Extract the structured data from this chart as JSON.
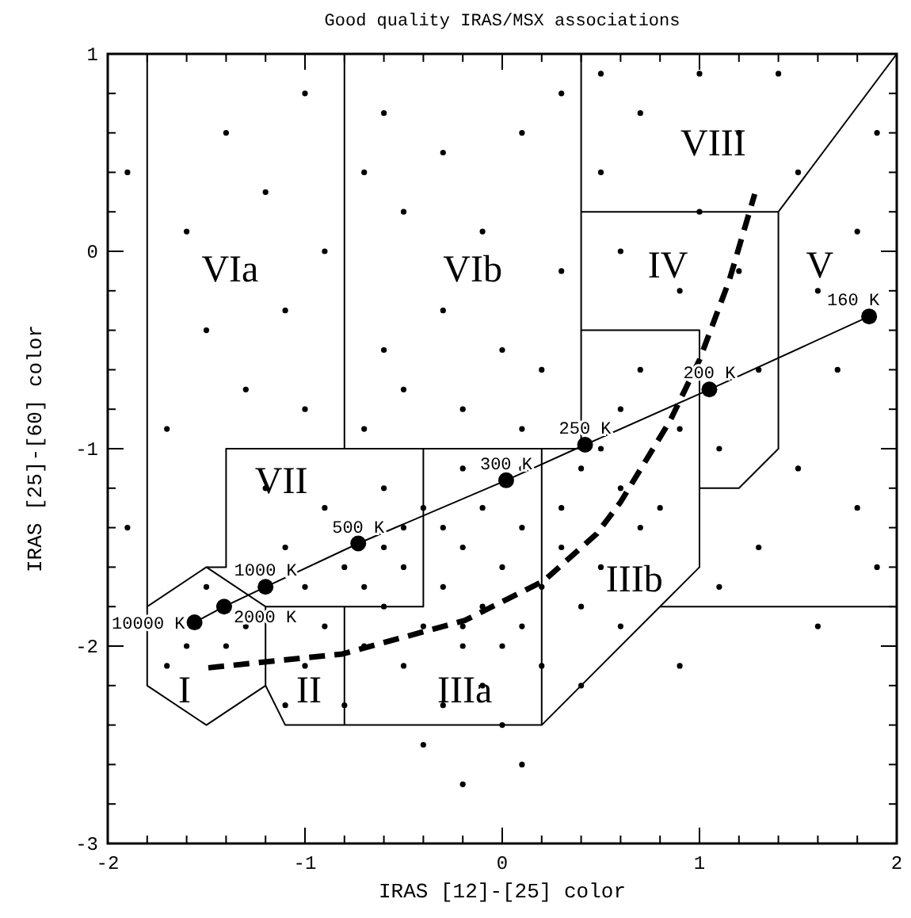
{
  "chart_data": {
    "type": "scatter",
    "title": "Good quality IRAS/MSX associations",
    "xlabel": "IRAS [12]-[25] color",
    "ylabel": "IRAS [25]-[60] color",
    "xlim": [
      -2,
      2
    ],
    "ylim": [
      -3,
      1
    ],
    "xticks": [
      -2,
      {
        "value": -1.8,
        "label": null
      },
      {
        "value": -1.6,
        "label": null
      },
      {
        "value": -1.4,
        "label": null
      },
      {
        "value": -1.2,
        "label": null
      },
      -1,
      {
        "value": -0.8,
        "label": null
      },
      {
        "value": -0.6,
        "label": null
      },
      {
        "value": -0.4,
        "label": null
      },
      {
        "value": -0.2,
        "label": null
      },
      0,
      {
        "value": 0.2,
        "label": null
      },
      {
        "value": 0.4,
        "label": null
      },
      {
        "value": 0.6,
        "label": null
      },
      {
        "value": 0.8,
        "label": null
      },
      1,
      {
        "value": 1.2,
        "label": null
      },
      {
        "value": 1.4,
        "label": null
      },
      {
        "value": 1.6,
        "label": null
      },
      {
        "value": 1.8,
        "label": null
      },
      2
    ],
    "yticks": [
      -3,
      {
        "value": -2.8,
        "label": null
      },
      {
        "value": -2.6,
        "label": null
      },
      {
        "value": -2.4,
        "label": null
      },
      {
        "value": -2.2,
        "label": null
      },
      -2,
      {
        "value": -1.8,
        "label": null
      },
      {
        "value": -1.6,
        "label": null
      },
      {
        "value": -1.4,
        "label": null
      },
      {
        "value": -1.2,
        "label": null
      },
      -1,
      {
        "value": -0.8,
        "label": null
      },
      {
        "value": -0.6,
        "label": null
      },
      {
        "value": -0.4,
        "label": null
      },
      {
        "value": -0.2,
        "label": null
      },
      0,
      {
        "value": 0.2,
        "label": null
      },
      {
        "value": 0.4,
        "label": null
      },
      {
        "value": 0.6,
        "label": null
      },
      {
        "value": 0.8,
        "label": null
      },
      1
    ],
    "series": [
      {
        "type": "scatter",
        "color": "#000000",
        "marker": "circle",
        "x": [
          -0.5,
          -0.3,
          -0.1,
          0.1,
          -0.4,
          -0.6,
          -0.2,
          0.0,
          -0.7,
          -0.2,
          0.2,
          -0.5,
          -0.1,
          0.3,
          -0.8,
          -0.3,
          0.1,
          -0.9,
          -0.6,
          0.0,
          -0.4,
          0.4,
          -0.2,
          -0.7,
          0.2,
          -1.0,
          -0.5,
          0.3,
          -0.1,
          -0.3,
          -1.1,
          -1.3,
          -1.0,
          -0.9,
          -1.2,
          -0.6,
          0.5,
          0.6,
          0.5,
          0.7,
          0.4,
          -0.2,
          0.1,
          -1.4,
          -1.6,
          -1.5,
          -1.7,
          -0.8,
          0.0,
          0.4,
          0.6,
          -1.1,
          -0.4,
          0.1,
          -0.2,
          -1.3,
          -1.0,
          -0.7,
          -0.5,
          -0.2,
          0.1,
          -1.5,
          -1.1,
          -0.6,
          -0.3,
          0.0,
          0.2,
          -1.6,
          -1.2,
          -0.9,
          -0.5,
          -0.1,
          0.3,
          -1.4,
          -1.0,
          -0.6,
          -0.3,
          0.1,
          -0.7,
          0.3,
          -1.7,
          -1.9,
          -1.9,
          0.5,
          0.7,
          1.0,
          1.2,
          0.6,
          0.9,
          1.2,
          0.7,
          0.9,
          1.1,
          1.3,
          1.6,
          1.8,
          1.5,
          1.9,
          1.7,
          1.5,
          1.8,
          1.3,
          1.9,
          0.8,
          0.6,
          1.1,
          1.6,
          0.9,
          1.0,
          1.4,
          0.5
        ],
        "values": [
          -1.6,
          -1.7,
          -1.8,
          -1.9,
          -1.9,
          -1.8,
          -1.5,
          -1.6,
          -1.7,
          -2.0,
          -1.7,
          -2.1,
          -2.2,
          -1.5,
          -1.6,
          -1.4,
          -1.4,
          -1.9,
          -1.5,
          -2.0,
          -1.3,
          -1.8,
          -1.9,
          -2.0,
          -2.1,
          -1.7,
          -1.4,
          -1.3,
          -1.3,
          -2.3,
          -1.5,
          -1.9,
          -2.1,
          -1.3,
          -1.2,
          -1.2,
          -1.6,
          -1.2,
          -1.0,
          -1.4,
          -1.1,
          -1.1,
          -1.1,
          -2.0,
          -2.0,
          -1.7,
          -2.1,
          -2.3,
          -2.4,
          -2.2,
          -1.9,
          -2.3,
          -2.5,
          -2.6,
          -2.7,
          -0.7,
          -0.8,
          -0.9,
          -0.7,
          -0.8,
          -0.9,
          -0.4,
          -0.3,
          -0.5,
          -0.3,
          -0.5,
          -0.6,
          0.1,
          0.3,
          0.0,
          0.2,
          0.1,
          -0.1,
          0.6,
          0.8,
          0.7,
          0.5,
          0.6,
          0.4,
          0.8,
          -0.9,
          -1.4,
          0.4,
          0.4,
          0.7,
          0.9,
          0.6,
          0.0,
          -0.2,
          -0.1,
          -0.6,
          -0.9,
          -1.0,
          -0.6,
          -0.2,
          0.1,
          0.4,
          0.6,
          -0.6,
          -1.1,
          -1.3,
          -1.5,
          -1.6,
          -1.3,
          -0.8,
          -1.7,
          -1.9,
          -2.1,
          0.2,
          0.9,
          0.9
        ]
      },
      {
        "type": "line",
        "color": "#000000",
        "marker": "none",
        "line_style": "solid",
        "x": [
          -1.8,
          -1.8,
          -1.5,
          -1.2,
          -1.1,
          0.2,
          1.0,
          1.0,
          1.2,
          1.4,
          1.4,
          2.0
        ],
        "values": [
          1.0,
          -2.2,
          -2.4,
          -2.2,
          -2.4,
          -2.4,
          -1.6,
          -1.2,
          -1.2,
          -1.0,
          0.2,
          1.0
        ]
      },
      {
        "type": "line",
        "color": "#000000",
        "marker": "none",
        "line_style": "solid",
        "x": [
          -1.8,
          -1.5,
          -1.2,
          -1.2
        ],
        "values": [
          -1.8,
          -1.6,
          -1.8,
          -2.2
        ]
      },
      {
        "type": "line",
        "color": "#000000",
        "marker": "none",
        "line_style": "solid",
        "x": [
          -1.5,
          -1.4,
          -1.4,
          0.2,
          0.4,
          0.4
        ],
        "values": [
          -1.6,
          -1.6,
          -1.0,
          -1.0,
          -1.0,
          1.0
        ]
      },
      {
        "type": "line",
        "color": "#000000",
        "marker": "none",
        "line_style": "solid",
        "x": [
          -0.8,
          -0.8
        ],
        "values": [
          1.0,
          -1.0
        ]
      },
      {
        "type": "line",
        "color": "#000000",
        "marker": "none",
        "line_style": "solid",
        "x": [
          -0.4,
          -0.4,
          -1.2
        ],
        "values": [
          -1.0,
          -1.8,
          -1.8
        ]
      },
      {
        "type": "line",
        "color": "#000000",
        "marker": "none",
        "line_style": "solid",
        "x": [
          -0.8,
          -0.8
        ],
        "values": [
          -1.8,
          -2.4
        ]
      },
      {
        "type": "line",
        "color": "#000000",
        "marker": "none",
        "line_style": "solid",
        "x": [
          0.2,
          0.2
        ],
        "values": [
          -1.0,
          -2.4
        ]
      },
      {
        "type": "line",
        "color": "#000000",
        "marker": "none",
        "line_style": "solid",
        "x": [
          0.4,
          1.0,
          1.0
        ],
        "values": [
          -0.4,
          -0.4,
          -1.2
        ]
      },
      {
        "type": "line",
        "color": "#000000",
        "marker": "none",
        "line_style": "solid",
        "x": [
          0.4,
          1.4
        ],
        "values": [
          0.2,
          0.2
        ]
      },
      {
        "type": "line",
        "color": "#000000",
        "marker": "none",
        "line_style": "solid",
        "x": [
          0.8,
          2.0
        ],
        "values": [
          -1.8,
          -1.8
        ]
      },
      {
        "type": "line",
        "color": "#000000",
        "marker": "circle",
        "line_style": "solid",
        "x": [
          -1.56,
          -1.41,
          -1.2,
          -0.73,
          0.02,
          0.42,
          1.05,
          1.86
        ],
        "values": [
          -1.88,
          -1.8,
          -1.7,
          -1.48,
          -1.16,
          -0.98,
          -0.7,
          -0.33
        ]
      },
      {
        "type": "line",
        "color": "#000000",
        "marker": "none",
        "line_style": "dashed",
        "x": [
          -1.49,
          -0.81,
          -0.19,
          0.21,
          0.48,
          0.6,
          0.85,
          1.0,
          1.15,
          1.28
        ],
        "values": [
          -2.11,
          -2.04,
          -1.87,
          -1.67,
          -1.43,
          -1.27,
          -0.86,
          -0.55,
          -0.15,
          0.29
        ]
      }
    ],
    "annotations": [
      {
        "text": "10000 K",
        "x": -1.56,
        "y": -1.88
      },
      {
        "text": "2000 K",
        "x": -1.41,
        "y": -1.8
      },
      {
        "text": "1000 K",
        "x": -1.2,
        "y": -1.7
      },
      {
        "text": "500 K",
        "x": -0.73,
        "y": -1.48
      },
      {
        "text": "300 K",
        "x": 0.02,
        "y": -1.16
      },
      {
        "text": "250 K",
        "x": 0.42,
        "y": -0.98
      },
      {
        "text": "200 K",
        "x": 1.05,
        "y": -0.7
      },
      {
        "text": "160 K",
        "x": 1.86,
        "y": -0.33
      },
      "I",
      "II",
      "IIIa",
      "IIIb",
      "IV",
      "V",
      "VIa",
      "VIb",
      "VII",
      "VIII"
    ]
  }
}
